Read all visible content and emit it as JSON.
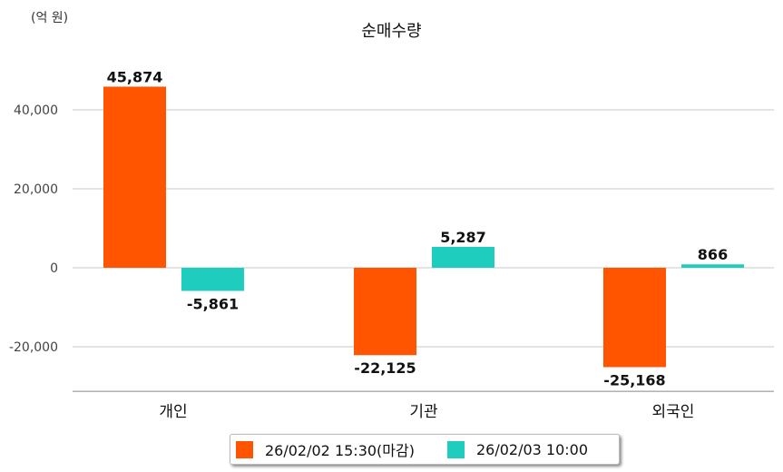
{
  "chart_data": {
    "type": "bar",
    "title": "순매수량",
    "unit_label": "(억 원)",
    "categories": [
      "개인",
      "기관",
      "외국인"
    ],
    "series": [
      {
        "name": "26/02/02 15:30(마감)",
        "color": "#ff5500",
        "values": [
          45874,
          -22125,
          -25168
        ],
        "labels": [
          "45,874",
          "-22,125",
          "-25,168"
        ]
      },
      {
        "name": "26/02/03 10:00",
        "color": "#1ecdbd",
        "values": [
          -5861,
          5287,
          866
        ],
        "labels": [
          "-5,861",
          "5,287",
          "866"
        ]
      }
    ],
    "y_ticks": [
      40000,
      20000,
      0,
      -20000
    ],
    "y_tick_labels": [
      "40,000",
      "20,000",
      "0",
      "-20,000"
    ],
    "ylim": [
      -31300,
      55000
    ],
    "grid": true,
    "legend_position": "bottom"
  }
}
